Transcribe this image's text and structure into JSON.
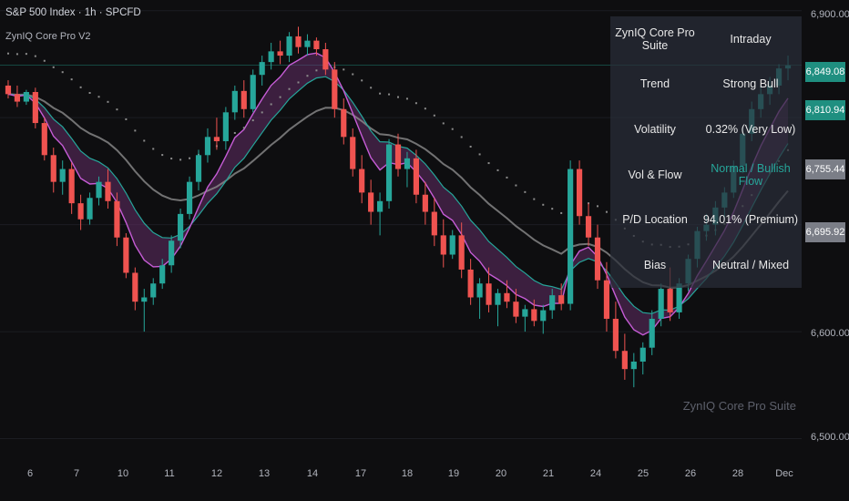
{
  "header": {
    "symbol": "S&P 500 Index · 1h · SPCFD",
    "indicator": "ZynIQ Core Pro V2",
    "watermark": "ZynIQ Core Pro Suite"
  },
  "table": {
    "title": "ZynIQ Core Pro Suite",
    "mode": "Intraday",
    "rows": [
      {
        "label": "Trend",
        "value": "Strong Bull"
      },
      {
        "label": "Volatility",
        "value": "0.32% (Very Low)"
      },
      {
        "label": "Vol & Flow",
        "value": "Normal / Bullish Flow"
      },
      {
        "label": "P/D Location",
        "value": "94.01% (Premium)"
      },
      {
        "label": "Bias",
        "value": "Neutral / Mixed"
      }
    ]
  },
  "colors": {
    "background": "#0e0e10",
    "bull": "#26a69a",
    "bear": "#ef5350",
    "fast_ema": "#c65cd6",
    "slow_ema": "#26a69a",
    "ribbon_fill": "#6a2f6e",
    "baseline": "#8c8c8c",
    "dots": "#8c8c8c"
  },
  "price_labels": [
    {
      "value": "6,849.08",
      "color": "#1f8f80"
    },
    {
      "value": "6,810.94",
      "color": "#1f8f80"
    },
    {
      "value": "6,755.44",
      "color": "#7b7e87"
    },
    {
      "value": "6,695.92",
      "color": "#7b7e87"
    }
  ],
  "chart_data": {
    "type": "candlestick",
    "y_ticks": [
      "6,900.00",
      "6,600.00",
      "6,500.00"
    ],
    "ylim": [
      6480,
      6910
    ],
    "x_ticks": [
      "6",
      "7",
      "10",
      "11",
      "12",
      "13",
      "14",
      "17",
      "18",
      "19",
      "20",
      "21",
      "24",
      "25",
      "26",
      "28",
      "Dec"
    ],
    "grid": true,
    "candles": [
      [
        6830,
        6835,
        6818,
        6822
      ],
      [
        6822,
        6830,
        6810,
        6815
      ],
      [
        6815,
        6826,
        6812,
        6824
      ],
      [
        6824,
        6828,
        6790,
        6795
      ],
      [
        6795,
        6800,
        6760,
        6765
      ],
      [
        6765,
        6772,
        6730,
        6740
      ],
      [
        6740,
        6760,
        6728,
        6752
      ],
      [
        6752,
        6758,
        6710,
        6720
      ],
      [
        6720,
        6728,
        6695,
        6705
      ],
      [
        6705,
        6730,
        6700,
        6725
      ],
      [
        6725,
        6745,
        6718,
        6740
      ],
      [
        6740,
        6752,
        6715,
        6722
      ],
      [
        6722,
        6730,
        6680,
        6688
      ],
      [
        6688,
        6692,
        6650,
        6655
      ],
      [
        6655,
        6660,
        6620,
        6628
      ],
      [
        6628,
        6640,
        6600,
        6632
      ],
      [
        6632,
        6650,
        6625,
        6645
      ],
      [
        6645,
        6668,
        6640,
        6662
      ],
      [
        6662,
        6690,
        6655,
        6685
      ],
      [
        6685,
        6715,
        6678,
        6710
      ],
      [
        6710,
        6745,
        6705,
        6740
      ],
      [
        6740,
        6770,
        6732,
        6765
      ],
      [
        6765,
        6790,
        6758,
        6782
      ],
      [
        6782,
        6800,
        6770,
        6778
      ],
      [
        6778,
        6810,
        6770,
        6805
      ],
      [
        6805,
        6830,
        6798,
        6825
      ],
      [
        6825,
        6835,
        6800,
        6808
      ],
      [
        6808,
        6845,
        6805,
        6840
      ],
      [
        6840,
        6858,
        6830,
        6852
      ],
      [
        6852,
        6870,
        6845,
        6862
      ],
      [
        6862,
        6872,
        6850,
        6858
      ],
      [
        6858,
        6880,
        6852,
        6876
      ],
      [
        6876,
        6885,
        6860,
        6866
      ],
      [
        6866,
        6878,
        6858,
        6872
      ],
      [
        6872,
        6875,
        6858,
        6864
      ],
      [
        6864,
        6870,
        6840,
        6845
      ],
      [
        6845,
        6852,
        6800,
        6808
      ],
      [
        6808,
        6818,
        6775,
        6782
      ],
      [
        6782,
        6790,
        6745,
        6752
      ],
      [
        6752,
        6765,
        6720,
        6730
      ],
      [
        6730,
        6742,
        6700,
        6712
      ],
      [
        6712,
        6730,
        6690,
        6722
      ],
      [
        6722,
        6780,
        6715,
        6775
      ],
      [
        6775,
        6785,
        6745,
        6752
      ],
      [
        6752,
        6768,
        6735,
        6762
      ],
      [
        6762,
        6770,
        6720,
        6728
      ],
      [
        6728,
        6740,
        6700,
        6712
      ],
      [
        6712,
        6725,
        6680,
        6690
      ],
      [
        6690,
        6705,
        6660,
        6672
      ],
      [
        6672,
        6695,
        6668,
        6690
      ],
      [
        6690,
        6702,
        6650,
        6658
      ],
      [
        6658,
        6668,
        6625,
        6632
      ],
      [
        6632,
        6650,
        6612,
        6645
      ],
      [
        6645,
        6660,
        6618,
        6625
      ],
      [
        6625,
        6640,
        6605,
        6636
      ],
      [
        6636,
        6648,
        6622,
        6628
      ],
      [
        6628,
        6640,
        6608,
        6614
      ],
      [
        6614,
        6625,
        6600,
        6621
      ],
      [
        6621,
        6630,
        6605,
        6610
      ],
      [
        6610,
        6625,
        6598,
        6620
      ],
      [
        6620,
        6640,
        6612,
        6634
      ],
      [
        6634,
        6645,
        6620,
        6626
      ],
      [
        6626,
        6760,
        6620,
        6752
      ],
      [
        6752,
        6760,
        6700,
        6708
      ],
      [
        6708,
        6720,
        6680,
        6688
      ],
      [
        6688,
        6700,
        6640,
        6648
      ],
      [
        6648,
        6665,
        6600,
        6612
      ],
      [
        6612,
        6628,
        6575,
        6582
      ],
      [
        6582,
        6598,
        6555,
        6565
      ],
      [
        6565,
        6580,
        6548,
        6572
      ],
      [
        6572,
        6590,
        6560,
        6585
      ],
      [
        6585,
        6620,
        6578,
        6612
      ],
      [
        6612,
        6645,
        6605,
        6640
      ],
      [
        6640,
        6660,
        6610,
        6618
      ],
      [
        6618,
        6650,
        6612,
        6645
      ],
      [
        6645,
        6672,
        6638,
        6668
      ],
      [
        6668,
        6698,
        6660,
        6694
      ],
      [
        6694,
        6710,
        6685,
        6700
      ],
      [
        6700,
        6722,
        6690,
        6716
      ],
      [
        6716,
        6735,
        6705,
        6730
      ],
      [
        6730,
        6760,
        6725,
        6755
      ],
      [
        6755,
        6790,
        6748,
        6785
      ],
      [
        6785,
        6815,
        6778,
        6808
      ],
      [
        6808,
        6830,
        6800,
        6822
      ],
      [
        6822,
        6838,
        6812,
        6830
      ],
      [
        6830,
        6850,
        6822,
        6846
      ],
      [
        6846,
        6858,
        6835,
        6849
      ]
    ]
  }
}
